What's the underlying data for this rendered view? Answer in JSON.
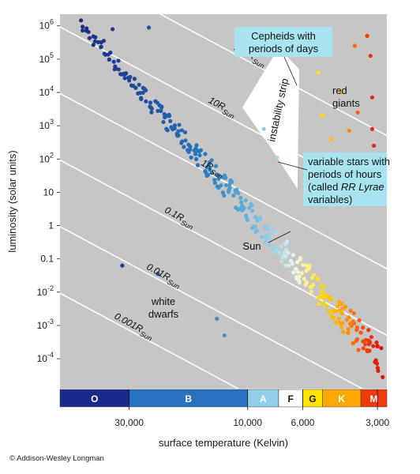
{
  "chart_data": {
    "type": "scatter",
    "xlabel": "surface temperature (Kelvin)",
    "ylabel": "luminosity (solar units)",
    "x_scale": "log",
    "x_reversed": true,
    "y_scale": "log",
    "xlim": [
      57000,
      2750
    ],
    "ylim_exponent": [
      -4.9,
      6.35
    ],
    "x_ticks": [
      {
        "value": 30000,
        "label": "30,000"
      },
      {
        "value": 10000,
        "label": "10,000"
      },
      {
        "value": 6000,
        "label": "6,000"
      },
      {
        "value": 3000,
        "label": "3,000"
      }
    ],
    "y_ticks": [
      {
        "exp": 6,
        "base": "10",
        "sup": "6",
        "plain": ""
      },
      {
        "exp": 5,
        "base": "10",
        "sup": "5",
        "plain": ""
      },
      {
        "exp": 4,
        "base": "10",
        "sup": "4",
        "plain": ""
      },
      {
        "exp": 3,
        "base": "10",
        "sup": "3",
        "plain": ""
      },
      {
        "exp": 2,
        "base": "10",
        "sup": "2",
        "plain": ""
      },
      {
        "exp": 1,
        "base": "",
        "sup": "",
        "plain": "10"
      },
      {
        "exp": 0,
        "base": "",
        "sup": "",
        "plain": "1"
      },
      {
        "exp": -1,
        "base": "",
        "sup": "",
        "plain": "0.1"
      },
      {
        "exp": -2,
        "base": "10",
        "sup": "-2",
        "plain": ""
      },
      {
        "exp": -3,
        "base": "10",
        "sup": "-3",
        "plain": ""
      },
      {
        "exp": -4,
        "base": "10",
        "sup": "-4",
        "plain": ""
      }
    ],
    "radius_lines": [
      {
        "radius": 100,
        "label": "100",
        "anchor_temp": 9900
      },
      {
        "radius": 10,
        "label": "10",
        "anchor_temp": 12800
      },
      {
        "radius": 1,
        "label": "1",
        "anchor_temp": 14000
      },
      {
        "radius": 0.1,
        "label": "0.1",
        "anchor_temp": 19000
      },
      {
        "radius": 0.01,
        "label": "0.01",
        "anchor_temp": 22000
      },
      {
        "radius": 0.001,
        "label": "0.001",
        "anchor_temp": 29000
      }
    ],
    "radius_unit": "R",
    "radius_unit_sub": "Sun",
    "spectral_classes": [
      {
        "label": "O",
        "t_hot": 57000,
        "t_cool": 30000,
        "color": "#1a2a8a",
        "text_color": "#ffffff"
      },
      {
        "label": "B",
        "t_hot": 30000,
        "t_cool": 10000,
        "color": "#2a70c0",
        "text_color": "#ffffff"
      },
      {
        "label": "A",
        "t_hot": 10000,
        "t_cool": 7500,
        "color": "#8fcfe8",
        "text_color": "#ffffff"
      },
      {
        "label": "F",
        "t_hot": 7500,
        "t_cool": 6000,
        "color": "#ffffff",
        "text_color": "#111111"
      },
      {
        "label": "G",
        "t_hot": 6000,
        "t_cool": 5000,
        "color": "#ffe600",
        "text_color": "#111111"
      },
      {
        "label": "K",
        "t_hot": 5000,
        "t_cool": 3500,
        "color": "#ffa800",
        "text_color": "#ffffff"
      },
      {
        "label": "M",
        "t_hot": 3500,
        "t_cool": 2750,
        "color": "#ef3a0e",
        "text_color": "#ffffff"
      }
    ],
    "annotations": {
      "cepheids": [
        "Cepheids with",
        "periods of days"
      ],
      "rr_lyrae": [
        "variable stars with",
        "periods of hours",
        "(called ",
        "RR Lyrae",
        ")",
        "variables)"
      ],
      "instability_strip": "instability strip",
      "red_giants": [
        "red",
        "giants"
      ],
      "white_dwarfs": [
        "white",
        "dwarfs"
      ],
      "sun": "Sun"
    },
    "main_sequence_params": {
      "t_start": 48000,
      "t_end": 2900,
      "lum_at_t_start_exp": 6.1,
      "lum_exp_per_log_t": 8.3,
      "star_count": 320,
      "scatter_exp": 0.35
    },
    "hot_giants": [
      {
        "t": 35000,
        "l": 5.9
      },
      {
        "t": 25000,
        "l": 5.95
      },
      {
        "t": 38000,
        "l": 5.55
      },
      {
        "t": 8800,
        "l": 5.6
      },
      {
        "t": 4900,
        "l": 5.9
      }
    ],
    "red_giant_stars": [
      {
        "t": 3300,
        "l": 5.7
      },
      {
        "t": 3700,
        "l": 5.4
      },
      {
        "t": 3200,
        "l": 5.1
      },
      {
        "t": 5200,
        "l": 4.6
      },
      {
        "t": 4200,
        "l": 4.0
      },
      {
        "t": 3150,
        "l": 3.85
      },
      {
        "t": 5000,
        "l": 3.3
      },
      {
        "t": 3600,
        "l": 3.4
      },
      {
        "t": 3150,
        "l": 2.9
      },
      {
        "t": 3900,
        "l": 2.85
      },
      {
        "t": 4600,
        "l": 2.6
      },
      {
        "t": 3100,
        "l": 2.4
      }
    ],
    "instability_stars": [
      {
        "t": 8600,
        "l": 2.9
      },
      {
        "t": 7600,
        "l": 2.05
      }
    ],
    "white_dwarf_stars": [
      {
        "t": 32000,
        "l": -1.2
      },
      {
        "t": 23000,
        "l": -1.45
      },
      {
        "t": 13300,
        "l": -2.8
      },
      {
        "t": 12400,
        "l": -3.3
      }
    ]
  },
  "footer": {
    "copyright": "© Addison-Wesley Longman"
  }
}
